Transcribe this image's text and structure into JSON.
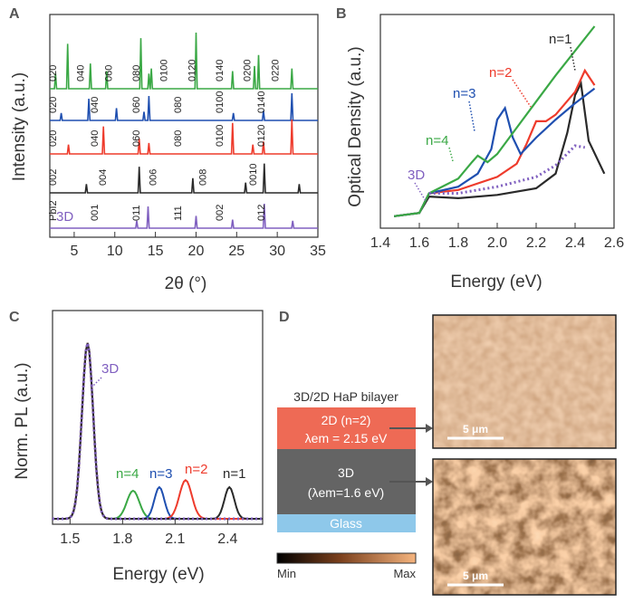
{
  "colors": {
    "green": "#3aa845",
    "blue": "#1f4fb0",
    "red": "#ee3b2c",
    "black": "#2a2a2a",
    "purple": "#8060c0",
    "grey": "#555555",
    "teal": "#3fa0a0",
    "layer2d": "#ee6a55",
    "layer3d": "#646464",
    "glass": "#8ec8ea"
  },
  "panel_a": {
    "letter": "A",
    "xlabel": "2θ (°)",
    "ylabel": "Intensity (a.u.)",
    "xticks": [
      "5",
      "10",
      "15",
      "20",
      "25",
      "30",
      "35"
    ],
    "traces": [
      {
        "name": "n=4",
        "color": "green",
        "labels": [
          "020",
          "040",
          "060",
          "080",
          "0100",
          "0120",
          "0140",
          "0200",
          "0220"
        ]
      },
      {
        "name": "n=3",
        "color": "blue",
        "labels": [
          "020",
          "040",
          "060",
          "080",
          "0100",
          "0140"
        ]
      },
      {
        "name": "n=2",
        "color": "red",
        "labels": [
          "020",
          "040",
          "060",
          "080",
          "0100",
          "0120"
        ]
      },
      {
        "name": "n=1",
        "color": "black",
        "labels": [
          "002",
          "004",
          "006",
          "008",
          "0010"
        ]
      },
      {
        "name": "3D",
        "color": "purple",
        "labels": [
          "PbI2",
          "001",
          "011",
          "111",
          "002",
          "012"
        ]
      }
    ],
    "label_3d": "3D"
  },
  "panel_b": {
    "letter": "B",
    "xlabel": "Energy (eV)",
    "ylabel": "Optical Density (a.u.)",
    "xticks": [
      "1.4",
      "1.6",
      "1.8",
      "2.0",
      "2.2",
      "2.4",
      "2.6"
    ],
    "labels": [
      "n=1",
      "n=2",
      "n=3",
      "n=4",
      "3D"
    ]
  },
  "panel_c": {
    "letter": "C",
    "xlabel": "Energy (eV)",
    "ylabel": "Norm. PL (a.u.)",
    "xticks": [
      "1.5",
      "1.8",
      "2.1",
      "2.4"
    ],
    "labels": [
      "3D",
      "n=4",
      "n=3",
      "n=2",
      "n=1"
    ]
  },
  "panel_d": {
    "letter": "D",
    "title": "3D/2D HaP bilayer",
    "layer_2d_name": "2D (n=2)",
    "layer_2d_em": "λem = 2.15 eV",
    "layer_3d_name": "3D",
    "layer_3d_em": "(λem=1.6 eV)",
    "glass": "Glass",
    "scale_top": "5 μm",
    "scale_bottom": "5 μm",
    "cbar_min": "Min",
    "cbar_max": "Max"
  },
  "chart_data": [
    {
      "type": "line",
      "title": "",
      "xlabel": "2θ (°)",
      "ylabel": "Intensity (a.u.)",
      "xlim": [
        2,
        35
      ],
      "series": [
        {
          "name": "n=4",
          "peaks": [
            2.7,
            4.2,
            7.0,
            9.0,
            13.2,
            14.2,
            14.5,
            20.0,
            24.5,
            27.2,
            27.7,
            31.8
          ]
        },
        {
          "name": "n=3",
          "peaks": [
            3.4,
            6.8,
            10.2,
            13.6,
            14.2,
            24.6,
            28.3,
            31.8
          ]
        },
        {
          "name": "n=2",
          "peaks": [
            4.3,
            8.6,
            13.0,
            14.2,
            24.5,
            27.0,
            28.3,
            31.8
          ]
        },
        {
          "name": "n=1",
          "peaks": [
            6.5,
            13.0,
            19.6,
            26.1,
            28.4,
            32.7
          ]
        },
        {
          "name": "3D",
          "peaks": [
            12.7,
            14.1,
            20.0,
            24.5,
            28.4,
            31.9
          ]
        }
      ]
    },
    {
      "type": "line",
      "title": "",
      "xlabel": "Energy (eV)",
      "ylabel": "Optical Density (a.u.)",
      "xlim": [
        1.4,
        2.6
      ],
      "series": [
        {
          "name": "n=1",
          "x": [
            1.47,
            1.6,
            1.65,
            1.8,
            2.0,
            2.2,
            2.3,
            2.36,
            2.4,
            2.43,
            2.47,
            2.55
          ],
          "y": [
            0.04,
            0.06,
            0.16,
            0.15,
            0.17,
            0.21,
            0.3,
            0.55,
            0.78,
            0.85,
            0.5,
            0.3
          ]
        },
        {
          "name": "n=2",
          "x": [
            1.47,
            1.6,
            1.65,
            1.8,
            2.0,
            2.1,
            2.15,
            2.2,
            2.25,
            2.3,
            2.4,
            2.45,
            2.5
          ],
          "y": [
            0.04,
            0.06,
            0.18,
            0.2,
            0.28,
            0.36,
            0.48,
            0.62,
            0.62,
            0.66,
            0.8,
            0.93,
            0.84
          ]
        },
        {
          "name": "n=3",
          "x": [
            1.47,
            1.6,
            1.65,
            1.8,
            1.9,
            1.97,
            2.0,
            2.04,
            2.08,
            2.12,
            2.2,
            2.3,
            2.4,
            2.5
          ],
          "y": [
            0.04,
            0.06,
            0.18,
            0.22,
            0.3,
            0.45,
            0.63,
            0.7,
            0.52,
            0.42,
            0.52,
            0.63,
            0.73,
            0.82
          ]
        },
        {
          "name": "n=4",
          "x": [
            1.47,
            1.6,
            1.65,
            1.8,
            1.87,
            1.9,
            1.95,
            2.0,
            2.1,
            2.2,
            2.3,
            2.4,
            2.5
          ],
          "y": [
            0.04,
            0.06,
            0.18,
            0.27,
            0.37,
            0.41,
            0.37,
            0.42,
            0.58,
            0.74,
            0.9,
            1.05,
            1.2
          ]
        },
        {
          "name": "3D",
          "x": [
            1.65,
            1.8,
            2.0,
            2.2,
            2.3,
            2.4,
            2.45
          ],
          "y": [
            0.18,
            0.18,
            0.22,
            0.28,
            0.35,
            0.47,
            0.46
          ]
        }
      ]
    },
    {
      "type": "line",
      "title": "",
      "xlabel": "Energy (eV)",
      "ylabel": "Norm. PL (a.u.)",
      "xlim": [
        1.4,
        2.6
      ],
      "series": [
        {
          "name": "3D",
          "peak_x": 1.6,
          "peak_y": 1.0
        },
        {
          "name": "n=4",
          "peak_x": 1.86,
          "peak_y": 0.16
        },
        {
          "name": "n=3",
          "peak_x": 2.01,
          "peak_y": 0.18
        },
        {
          "name": "n=2",
          "peak_x": 2.16,
          "peak_y": 0.22
        },
        {
          "name": "n=1",
          "peak_x": 2.41,
          "peak_y": 0.18
        }
      ]
    }
  ]
}
